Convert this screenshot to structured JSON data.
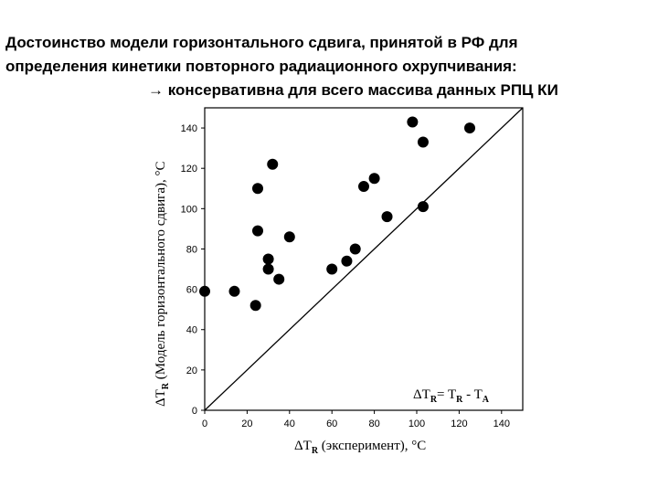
{
  "title_lines": [
    "Достоинство модели горизонтального сдвига, принятой в РФ для",
    "определения кинетики повторного радиационного охрупчивания:",
    "→ консервативна для всего массива данных РПЦ КИ"
  ],
  "chart_data": {
    "type": "scatter",
    "x_label": {
      "main": "ΔT",
      "sub": "R",
      "rest": " (эксперимент),  °C"
    },
    "y_label": {
      "main": "ΔT",
      "sub": "R",
      "rest": " (Модель горизонтального сдвига),  °C"
    },
    "annotation": {
      "a": "ΔT",
      "a_sub": "R",
      "b": "= T",
      "b_sub": "R",
      "c": " - T",
      "c_sub": "A"
    },
    "x": [
      0,
      14,
      24,
      25,
      25,
      30,
      30,
      32,
      35,
      40,
      60,
      67,
      71,
      75,
      80,
      86,
      98,
      103,
      103,
      125
    ],
    "values": [
      59,
      59,
      52,
      110,
      89,
      70,
      75,
      122,
      65,
      86,
      70,
      74,
      80,
      111,
      115,
      96,
      143,
      133,
      101,
      140
    ],
    "color": "#000000",
    "xlim": [
      0,
      150
    ],
    "ylim": [
      0,
      150
    ],
    "xticks": [
      0,
      20,
      40,
      60,
      80,
      100,
      120,
      140
    ],
    "yticks": [
      0,
      20,
      40,
      60,
      80,
      100,
      120,
      140
    ],
    "diagonal": true
  }
}
